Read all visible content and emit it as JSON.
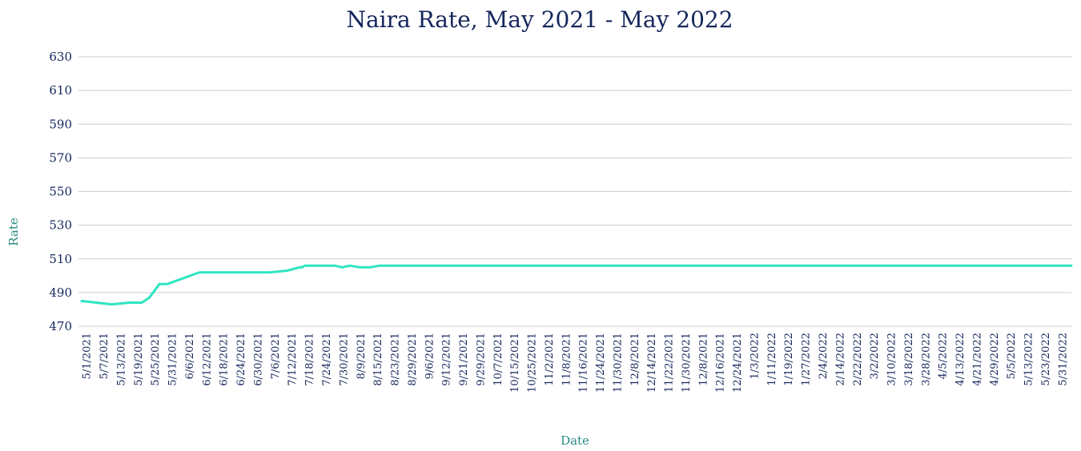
{
  "chart_data": {
    "type": "line",
    "title": "Naira Rate, May 2021 - May 2022",
    "xlabel": "Date",
    "ylabel": "Rate",
    "ylim": [
      470,
      630
    ],
    "yticks": [
      470,
      490,
      510,
      530,
      550,
      570,
      590,
      610,
      630
    ],
    "grid": true,
    "legend": "none",
    "line_color": "#2ee6c0",
    "xticks": [
      "5/1/2021",
      "5/7/2021",
      "5/13/2021",
      "5/19/2021",
      "5/25/2021",
      "5/31/2021",
      "6/6/2021",
      "6/12/2021",
      "6/18/2021",
      "6/24/2021",
      "6/30/2021",
      "7/6/2021",
      "7/12/2021",
      "7/18/2021",
      "7/24/2021",
      "7/30/2021",
      "8/9/2021",
      "8/15/2021",
      "8/23/2021",
      "8/29/2021",
      "9/6/2021",
      "9/12/2021",
      "9/21/2021",
      "9/29/2021",
      "10/7/2021",
      "10/15/2021",
      "10/25/2021",
      "11/2/2021",
      "11/8/2021",
      "11/16/2021",
      "11/24/2021",
      "11/30/2021",
      "12/8/2021",
      "12/14/2021",
      "11/22/2021",
      "11/30/2021",
      "12/8/2021",
      "12/16/2021",
      "12/24/2021",
      "1/3/2022",
      "1/11/2022",
      "1/19/2022",
      "1/27/2022",
      "2/4/2022",
      "2/14/2022",
      "2/22/2022",
      "3/2/2022",
      "3/10/2022",
      "3/18/2022",
      "3/28/2022",
      "4/5/2022",
      "4/13/2022",
      "4/21/2022",
      "4/29/2022",
      "5/5/2022",
      "5/13/2022",
      "5/23/2022",
      "5/31/2022"
    ],
    "series": [
      {
        "x": [
          "5/1/2021",
          "5/13/2021",
          "5/20/2021",
          "5/25/2021",
          "5/27/2021",
          "5/28/2021",
          "6/1/2021",
          "6/4/2021",
          "6/17/2021",
          "6/18/2021",
          "6/20/2021",
          "6/22/2021",
          "7/1/2021",
          "7/15/2021",
          "7/22/2021",
          "7/27/2021",
          "7/28/2021",
          "7/29/2021",
          "7/31/2021",
          "8/2/2021",
          "8/6/2021",
          "8/10/2021",
          "8/13/2021",
          "8/16/2021",
          "8/20/2021",
          "8/24/2021",
          "8/28/2021",
          "8/31/2021",
          "9/3/2021",
          "9/6/2021",
          "9/9/2021",
          "9/11/2021",
          "9/14/2021",
          "9/16/2021",
          "9/18/2021",
          "9/20/2021",
          "9/21/2021",
          "9/22/2021",
          "9/26/2021",
          "9/28/2021",
          "10/1/2021",
          "10/3/2021",
          "10/5/2021",
          "10/10/2021",
          "10/16/2021",
          "10/20/2021",
          "10/25/2021",
          "10/29/2021",
          "11/1/2021",
          "11/3/2021",
          "11/5/2021",
          "11/7/2021",
          "11/11/2021",
          "11/14/2021",
          "11/17/2021",
          "11/18/2021",
          "11/20/2021",
          "11/24/2021",
          "11/26/2021",
          "11/30/2021",
          "12/1/2021",
          "12/5/2021",
          "12/8/2021",
          "12/12/2021",
          "12/13/2021",
          "12/20/2021",
          "12/24/2021",
          "12/30/2021",
          "1/5/2022",
          "1/10/2022",
          "1/15/2022",
          "1/20/2022",
          "1/25/2022",
          "1/27/2022",
          "1/28/2022",
          "1/31/2022",
          "2/2/2022",
          "2/4/2022",
          "2/7/2022",
          "2/14/2022",
          "2/22/2022",
          "2/28/2022",
          "3/1/2022",
          "3/3/2022",
          "3/6/2022",
          "3/10/2022",
          "3/13/2022",
          "3/15/2022",
          "3/17/2022",
          "3/20/2022",
          "3/24/2022",
          "3/28/2022",
          "4/2/2022",
          "4/6/2022",
          "4/10/2022",
          "4/14/2022",
          "4/18/2022",
          "4/21/2022",
          "4/28/2022",
          "5/3/2022",
          "5/8/2022",
          "5/11/2022",
          "5/14/2022",
          "5/16/2022",
          "5/18/2022",
          "5/20/2022",
          "5/21/2022",
          "5/22/2022",
          "5/25/2022",
          "5/28/2022",
          "5/29/2022",
          "5/31/2022"
        ],
        "y": [
          485,
          483,
          484,
          484,
          486,
          487,
          495,
          495,
          502,
          502,
          502,
          502,
          502,
          502,
          503,
          505,
          505,
          506,
          506,
          506,
          506,
          506,
          505,
          506,
          505,
          505,
          506,
          506,
          506,
          506,
          506,
          506,
          506,
          506,
          506,
          506,
          506,
          506,
          506,
          506,
          506,
          506,
          506,
          506,
          506,
          506,
          506,
          506,
          506,
          506,
          506,
          506,
          506,
          506,
          506,
          506,
          506,
          506,
          506,
          506,
          506,
          506,
          506,
          506,
          506,
          506,
          506,
          506,
          506,
          506,
          506,
          506,
          506,
          506,
          506,
          506,
          506,
          506,
          506,
          506,
          506,
          506,
          506,
          506,
          506,
          506,
          506,
          506,
          506,
          506,
          506,
          506,
          506,
          506,
          506,
          506,
          506,
          506,
          506,
          506,
          506,
          506,
          506,
          506,
          506,
          506,
          506,
          506,
          506,
          506,
          506,
          506
        ]
      }
    ]
  }
}
